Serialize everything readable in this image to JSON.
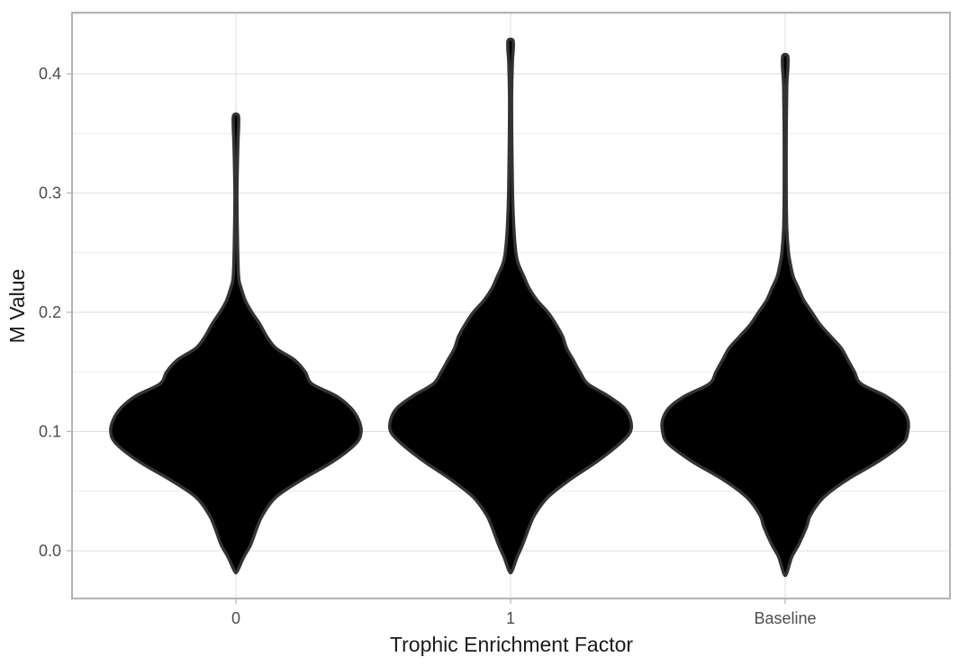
{
  "chart_data": {
    "type": "violin",
    "title": "",
    "xlabel": "Trophic Enrichment Factor",
    "ylabel": "M  Value",
    "categories": [
      "0",
      "1",
      "Baseline"
    ],
    "ylim": [
      -0.04,
      0.44
    ],
    "yticks": [
      0.0,
      0.1,
      0.2,
      0.3,
      0.4
    ],
    "ytick_labels": [
      "0.0",
      "0.1",
      "0.2",
      "0.3",
      "0.4"
    ],
    "grid": true,
    "fill_color": "#000000",
    "outline_color": "#333333",
    "violins": [
      {
        "category": "0",
        "y_min": -0.017,
        "y_max": 0.365,
        "density_profile": [
          [
            -0.017,
            0.01
          ],
          [
            -0.005,
            0.06
          ],
          [
            0.005,
            0.11
          ],
          [
            0.02,
            0.16
          ],
          [
            0.03,
            0.2
          ],
          [
            0.045,
            0.3
          ],
          [
            0.06,
            0.5
          ],
          [
            0.075,
            0.73
          ],
          [
            0.09,
            0.9
          ],
          [
            0.1,
            0.94
          ],
          [
            0.11,
            0.92
          ],
          [
            0.12,
            0.86
          ],
          [
            0.13,
            0.75
          ],
          [
            0.14,
            0.57
          ],
          [
            0.15,
            0.52
          ],
          [
            0.16,
            0.44
          ],
          [
            0.17,
            0.3
          ],
          [
            0.18,
            0.23
          ],
          [
            0.19,
            0.18
          ],
          [
            0.2,
            0.12
          ],
          [
            0.21,
            0.07
          ],
          [
            0.22,
            0.04
          ],
          [
            0.23,
            0.02
          ],
          [
            0.26,
            0.012
          ],
          [
            0.3,
            0.008
          ],
          [
            0.34,
            0.015
          ],
          [
            0.355,
            0.02
          ],
          [
            0.365,
            0.018
          ]
        ]
      },
      {
        "category": "1",
        "y_min": -0.017,
        "y_max": 0.428,
        "density_profile": [
          [
            -0.017,
            0.01
          ],
          [
            -0.005,
            0.05
          ],
          [
            0.005,
            0.09
          ],
          [
            0.02,
            0.14
          ],
          [
            0.03,
            0.18
          ],
          [
            0.045,
            0.28
          ],
          [
            0.06,
            0.45
          ],
          [
            0.075,
            0.65
          ],
          [
            0.09,
            0.82
          ],
          [
            0.1,
            0.9
          ],
          [
            0.11,
            0.9
          ],
          [
            0.12,
            0.85
          ],
          [
            0.13,
            0.73
          ],
          [
            0.14,
            0.58
          ],
          [
            0.15,
            0.52
          ],
          [
            0.16,
            0.47
          ],
          [
            0.17,
            0.42
          ],
          [
            0.18,
            0.39
          ],
          [
            0.19,
            0.34
          ],
          [
            0.2,
            0.28
          ],
          [
            0.21,
            0.2
          ],
          [
            0.22,
            0.14
          ],
          [
            0.23,
            0.1
          ],
          [
            0.24,
            0.06
          ],
          [
            0.25,
            0.04
          ],
          [
            0.27,
            0.025
          ],
          [
            0.3,
            0.015
          ],
          [
            0.34,
            0.01
          ],
          [
            0.38,
            0.008
          ],
          [
            0.41,
            0.014
          ],
          [
            0.42,
            0.02
          ],
          [
            0.428,
            0.018
          ]
        ]
      },
      {
        "category": "Baseline",
        "y_min": -0.019,
        "y_max": 0.415,
        "density_profile": [
          [
            -0.019,
            0.01
          ],
          [
            -0.005,
            0.05
          ],
          [
            0.005,
            0.1
          ],
          [
            0.02,
            0.16
          ],
          [
            0.03,
            0.19
          ],
          [
            0.045,
            0.29
          ],
          [
            0.06,
            0.47
          ],
          [
            0.075,
            0.7
          ],
          [
            0.09,
            0.88
          ],
          [
            0.1,
            0.92
          ],
          [
            0.11,
            0.92
          ],
          [
            0.12,
            0.87
          ],
          [
            0.13,
            0.75
          ],
          [
            0.14,
            0.57
          ],
          [
            0.15,
            0.52
          ],
          [
            0.16,
            0.47
          ],
          [
            0.17,
            0.42
          ],
          [
            0.18,
            0.34
          ],
          [
            0.19,
            0.26
          ],
          [
            0.2,
            0.2
          ],
          [
            0.21,
            0.14
          ],
          [
            0.22,
            0.1
          ],
          [
            0.23,
            0.06
          ],
          [
            0.24,
            0.04
          ],
          [
            0.25,
            0.025
          ],
          [
            0.27,
            0.012
          ],
          [
            0.3,
            0.008
          ],
          [
            0.35,
            0.008
          ],
          [
            0.39,
            0.012
          ],
          [
            0.405,
            0.02
          ],
          [
            0.415,
            0.018
          ]
        ]
      }
    ]
  }
}
